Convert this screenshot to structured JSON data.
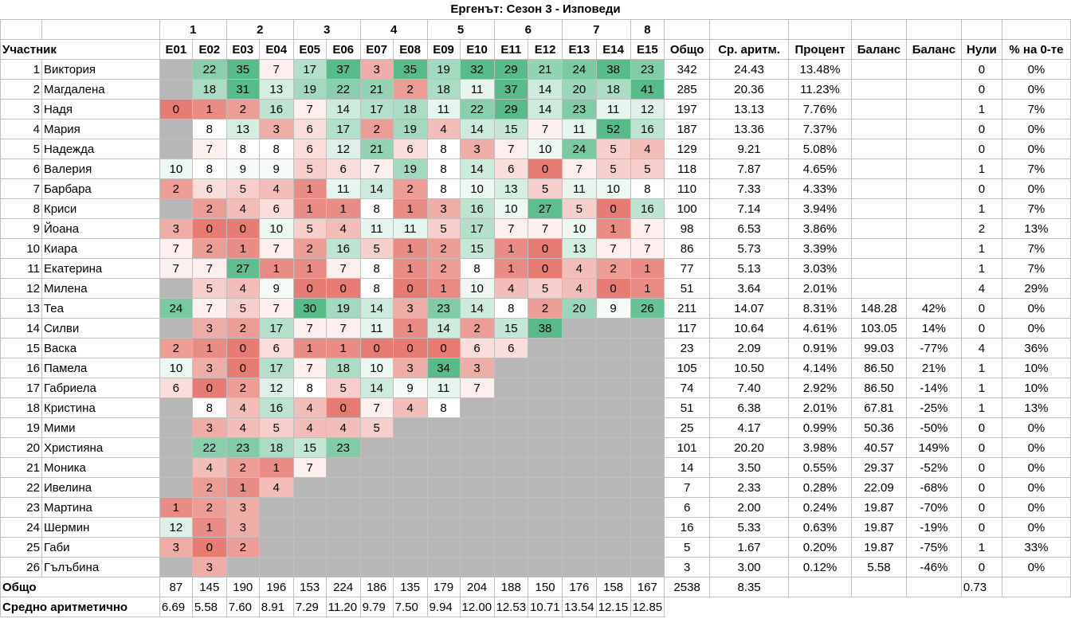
{
  "title": "Ергенът: Сезон 3 - Изповеди",
  "week_numbers": [
    "1",
    "2",
    "3",
    "4",
    "5",
    "6",
    "7",
    "8"
  ],
  "headers": [
    "Участник",
    "E01",
    "E02",
    "E03",
    "E04",
    "E05",
    "E06",
    "E07",
    "E08",
    "E09",
    "E10",
    "E11",
    "E12",
    "E13",
    "E14",
    "E15",
    "Общо",
    "Ср. аритм.",
    "Процент",
    "Баланс",
    "Баланс",
    "Нули",
    "% на 0-те"
  ],
  "rows": [
    {
      "rank": "1",
      "name": "Виктория",
      "ep": [
        "",
        "22",
        "35",
        "7",
        "17",
        "37",
        "3",
        "35",
        "19",
        "32",
        "29",
        "21",
        "24",
        "38",
        "23"
      ],
      "total": "342",
      "avg": "24.43",
      "pct": "13.48%",
      "bal1": "",
      "bal2": "",
      "zeros": "0",
      "zpct": "0%"
    },
    {
      "rank": "2",
      "name": "Магдалена",
      "ep": [
        "",
        "18",
        "31",
        "13",
        "19",
        "22",
        "21",
        "2",
        "18",
        "11",
        "37",
        "14",
        "20",
        "18",
        "41"
      ],
      "total": "285",
      "avg": "20.36",
      "pct": "11.23%",
      "bal1": "",
      "bal2": "",
      "zeros": "0",
      "zpct": "0%"
    },
    {
      "rank": "3",
      "name": "Надя",
      "ep": [
        "0",
        "1",
        "2",
        "16",
        "7",
        "14",
        "17",
        "18",
        "11",
        "22",
        "29",
        "14",
        "23",
        "11",
        "12"
      ],
      "total": "197",
      "avg": "13.13",
      "pct": "7.76%",
      "bal1": "",
      "bal2": "",
      "zeros": "1",
      "zpct": "7%"
    },
    {
      "rank": "4",
      "name": "Мария",
      "ep": [
        "",
        "8",
        "13",
        "3",
        "6",
        "17",
        "2",
        "19",
        "4",
        "14",
        "15",
        "7",
        "11",
        "52",
        "16"
      ],
      "total": "187",
      "avg": "13.36",
      "pct": "7.37%",
      "bal1": "",
      "bal2": "",
      "zeros": "0",
      "zpct": "0%"
    },
    {
      "rank": "5",
      "name": "Надежда",
      "ep": [
        "",
        "7",
        "8",
        "8",
        "6",
        "12",
        "21",
        "6",
        "8",
        "3",
        "7",
        "10",
        "24",
        "5",
        "4"
      ],
      "total": "129",
      "avg": "9.21",
      "pct": "5.08%",
      "bal1": "",
      "bal2": "",
      "zeros": "0",
      "zpct": "0%"
    },
    {
      "rank": "6",
      "name": "Валерия",
      "ep": [
        "10",
        "8",
        "9",
        "9",
        "5",
        "6",
        "7",
        "19",
        "8",
        "14",
        "6",
        "0",
        "7",
        "5",
        "5"
      ],
      "total": "118",
      "avg": "7.87",
      "pct": "4.65%",
      "bal1": "",
      "bal2": "",
      "zeros": "1",
      "zpct": "7%"
    },
    {
      "rank": "7",
      "name": "Барбара",
      "ep": [
        "2",
        "6",
        "5",
        "4",
        "1",
        "11",
        "14",
        "2",
        "8",
        "10",
        "13",
        "5",
        "11",
        "10",
        "8"
      ],
      "total": "110",
      "avg": "7.33",
      "pct": "4.33%",
      "bal1": "",
      "bal2": "",
      "zeros": "0",
      "zpct": "0%"
    },
    {
      "rank": "8",
      "name": "Криси",
      "ep": [
        "",
        "2",
        "4",
        "6",
        "1",
        "1",
        "8",
        "1",
        "3",
        "16",
        "10",
        "27",
        "5",
        "0",
        "16"
      ],
      "total": "100",
      "avg": "7.14",
      "pct": "3.94%",
      "bal1": "",
      "bal2": "",
      "zeros": "1",
      "zpct": "7%"
    },
    {
      "rank": "9",
      "name": "Йоана",
      "ep": [
        "3",
        "0",
        "0",
        "10",
        "5",
        "4",
        "11",
        "11",
        "5",
        "17",
        "7",
        "7",
        "10",
        "1",
        "7"
      ],
      "total": "98",
      "avg": "6.53",
      "pct": "3.86%",
      "bal1": "",
      "bal2": "",
      "zeros": "2",
      "zpct": "13%"
    },
    {
      "rank": "10",
      "name": "Киара",
      "ep": [
        "7",
        "2",
        "1",
        "7",
        "2",
        "16",
        "5",
        "1",
        "2",
        "15",
        "1",
        "0",
        "13",
        "7",
        "7"
      ],
      "total": "86",
      "avg": "5.73",
      "pct": "3.39%",
      "bal1": "",
      "bal2": "",
      "zeros": "1",
      "zpct": "7%"
    },
    {
      "rank": "11",
      "name": "Екатерина",
      "ep": [
        "7",
        "7",
        "27",
        "1",
        "1",
        "7",
        "8",
        "1",
        "2",
        "8",
        "1",
        "0",
        "4",
        "2",
        "1"
      ],
      "total": "77",
      "avg": "5.13",
      "pct": "3.03%",
      "bal1": "",
      "bal2": "",
      "zeros": "1",
      "zpct": "7%"
    },
    {
      "rank": "12",
      "name": "Милена",
      "ep": [
        "",
        "5",
        "4",
        "9",
        "0",
        "0",
        "8",
        "0",
        "1",
        "10",
        "4",
        "5",
        "4",
        "0",
        "1"
      ],
      "total": "51",
      "avg": "3.64",
      "pct": "2.01%",
      "bal1": "",
      "bal2": "",
      "zeros": "4",
      "zpct": "29%"
    },
    {
      "rank": "13",
      "name": "Теа",
      "ep": [
        "24",
        "7",
        "5",
        "7",
        "30",
        "19",
        "14",
        "3",
        "23",
        "14",
        "8",
        "2",
        "20",
        "9",
        "26"
      ],
      "total": "211",
      "avg": "14.07",
      "pct": "8.31%",
      "bal1": "148.28",
      "bal2": "42%",
      "zeros": "0",
      "zpct": "0%"
    },
    {
      "rank": "14",
      "name": "Силви",
      "ep": [
        "",
        "3",
        "2",
        "17",
        "7",
        "7",
        "11",
        "1",
        "14",
        "2",
        "15",
        "38",
        null,
        null,
        null
      ],
      "total": "117",
      "avg": "10.64",
      "pct": "4.61%",
      "bal1": "103.05",
      "bal2": "14%",
      "zeros": "0",
      "zpct": "0%"
    },
    {
      "rank": "15",
      "name": "Васка",
      "ep": [
        "2",
        "1",
        "0",
        "6",
        "1",
        "1",
        "0",
        "0",
        "0",
        "6",
        "6",
        null,
        null,
        null,
        null
      ],
      "total": "23",
      "avg": "2.09",
      "pct": "0.91%",
      "bal1": "99.03",
      "bal2": "-77%",
      "zeros": "4",
      "zpct": "36%"
    },
    {
      "rank": "16",
      "name": "Памела",
      "ep": [
        "10",
        "3",
        "0",
        "17",
        "7",
        "18",
        "10",
        "3",
        "34",
        "3",
        null,
        null,
        null,
        null,
        null
      ],
      "total": "105",
      "avg": "10.50",
      "pct": "4.14%",
      "bal1": "86.50",
      "bal2": "21%",
      "zeros": "1",
      "zpct": "10%"
    },
    {
      "rank": "17",
      "name": "Габриела",
      "ep": [
        "6",
        "0",
        "2",
        "12",
        "8",
        "5",
        "14",
        "9",
        "11",
        "7",
        null,
        null,
        null,
        null,
        null
      ],
      "total": "74",
      "avg": "7.40",
      "pct": "2.92%",
      "bal1": "86.50",
      "bal2": "-14%",
      "zeros": "1",
      "zpct": "10%"
    },
    {
      "rank": "18",
      "name": "Кристина",
      "ep": [
        "",
        "8",
        "4",
        "16",
        "4",
        "0",
        "7",
        "4",
        "8",
        null,
        null,
        null,
        null,
        null,
        null
      ],
      "total": "51",
      "avg": "6.38",
      "pct": "2.01%",
      "bal1": "67.81",
      "bal2": "-25%",
      "zeros": "1",
      "zpct": "13%"
    },
    {
      "rank": "19",
      "name": "Мими",
      "ep": [
        "",
        "3",
        "4",
        "5",
        "4",
        "4",
        "5",
        null,
        null,
        null,
        null,
        null,
        null,
        null,
        null
      ],
      "total": "25",
      "avg": "4.17",
      "pct": "0.99%",
      "bal1": "50.36",
      "bal2": "-50%",
      "zeros": "0",
      "zpct": "0%"
    },
    {
      "rank": "20",
      "name": "Християна",
      "ep": [
        "",
        "22",
        "23",
        "18",
        "15",
        "23",
        null,
        null,
        null,
        null,
        null,
        null,
        null,
        null,
        null
      ],
      "total": "101",
      "avg": "20.20",
      "pct": "3.98%",
      "bal1": "40.57",
      "bal2": "149%",
      "zeros": "0",
      "zpct": "0%"
    },
    {
      "rank": "21",
      "name": "Моника",
      "ep": [
        "",
        "4",
        "2",
        "1",
        "7",
        null,
        null,
        null,
        null,
        null,
        null,
        null,
        null,
        null,
        null
      ],
      "total": "14",
      "avg": "3.50",
      "pct": "0.55%",
      "bal1": "29.37",
      "bal2": "-52%",
      "zeros": "0",
      "zpct": "0%"
    },
    {
      "rank": "22",
      "name": "Ивелина",
      "ep": [
        "",
        "2",
        "1",
        "4",
        null,
        null,
        null,
        null,
        null,
        null,
        null,
        null,
        null,
        null,
        null
      ],
      "total": "7",
      "avg": "2.33",
      "pct": "0.28%",
      "bal1": "22.09",
      "bal2": "-68%",
      "zeros": "0",
      "zpct": "0%"
    },
    {
      "rank": "23",
      "name": "Мартина",
      "ep": [
        "1",
        "2",
        "3",
        null,
        null,
        null,
        null,
        null,
        null,
        null,
        null,
        null,
        null,
        null,
        null
      ],
      "total": "6",
      "avg": "2.00",
      "pct": "0.24%",
      "bal1": "19.87",
      "bal2": "-70%",
      "zeros": "0",
      "zpct": "0%"
    },
    {
      "rank": "24",
      "name": "Шермин",
      "ep": [
        "12",
        "1",
        "3",
        null,
        null,
        null,
        null,
        null,
        null,
        null,
        null,
        null,
        null,
        null,
        null
      ],
      "total": "16",
      "avg": "5.33",
      "pct": "0.63%",
      "bal1": "19.87",
      "bal2": "-19%",
      "zeros": "0",
      "zpct": "0%"
    },
    {
      "rank": "25",
      "name": "Габи",
      "ep": [
        "3",
        "0",
        "2",
        null,
        null,
        null,
        null,
        null,
        null,
        null,
        null,
        null,
        null,
        null,
        null
      ],
      "total": "5",
      "avg": "1.67",
      "pct": "0.20%",
      "bal1": "19.87",
      "bal2": "-75%",
      "zeros": "1",
      "zpct": "33%"
    },
    {
      "rank": "26",
      "name": "Гълъбина",
      "ep": [
        "",
        "3",
        null,
        null,
        null,
        null,
        null,
        null,
        null,
        null,
        null,
        null,
        null,
        null,
        null
      ],
      "total": "3",
      "avg": "3.00",
      "pct": "0.12%",
      "bal1": "5.58",
      "bal2": "-46%",
      "zeros": "0",
      "zpct": "0%"
    }
  ],
  "totals": {
    "label": "Общо",
    "ep": [
      "87",
      "145",
      "190",
      "196",
      "153",
      "224",
      "186",
      "135",
      "179",
      "204",
      "188",
      "150",
      "176",
      "158",
      "167"
    ],
    "total": "2538",
    "avg": "8.35",
    "zeros": "0.73"
  },
  "averages": {
    "label": "Средно аритметично",
    "ep": [
      "6.69",
      "5.58",
      "7.60",
      "8.91",
      "7.29",
      "11.20",
      "9.79",
      "7.50",
      "9.94",
      "12.00",
      "12.53",
      "10.71",
      "13.54",
      "12.15",
      "12.85"
    ]
  },
  "colors": {
    "grey": "#b7b7b7",
    "green": "#57bb8a",
    "red": "#e67c73",
    "white": "#ffffff",
    "border": "#bfbfbf"
  }
}
